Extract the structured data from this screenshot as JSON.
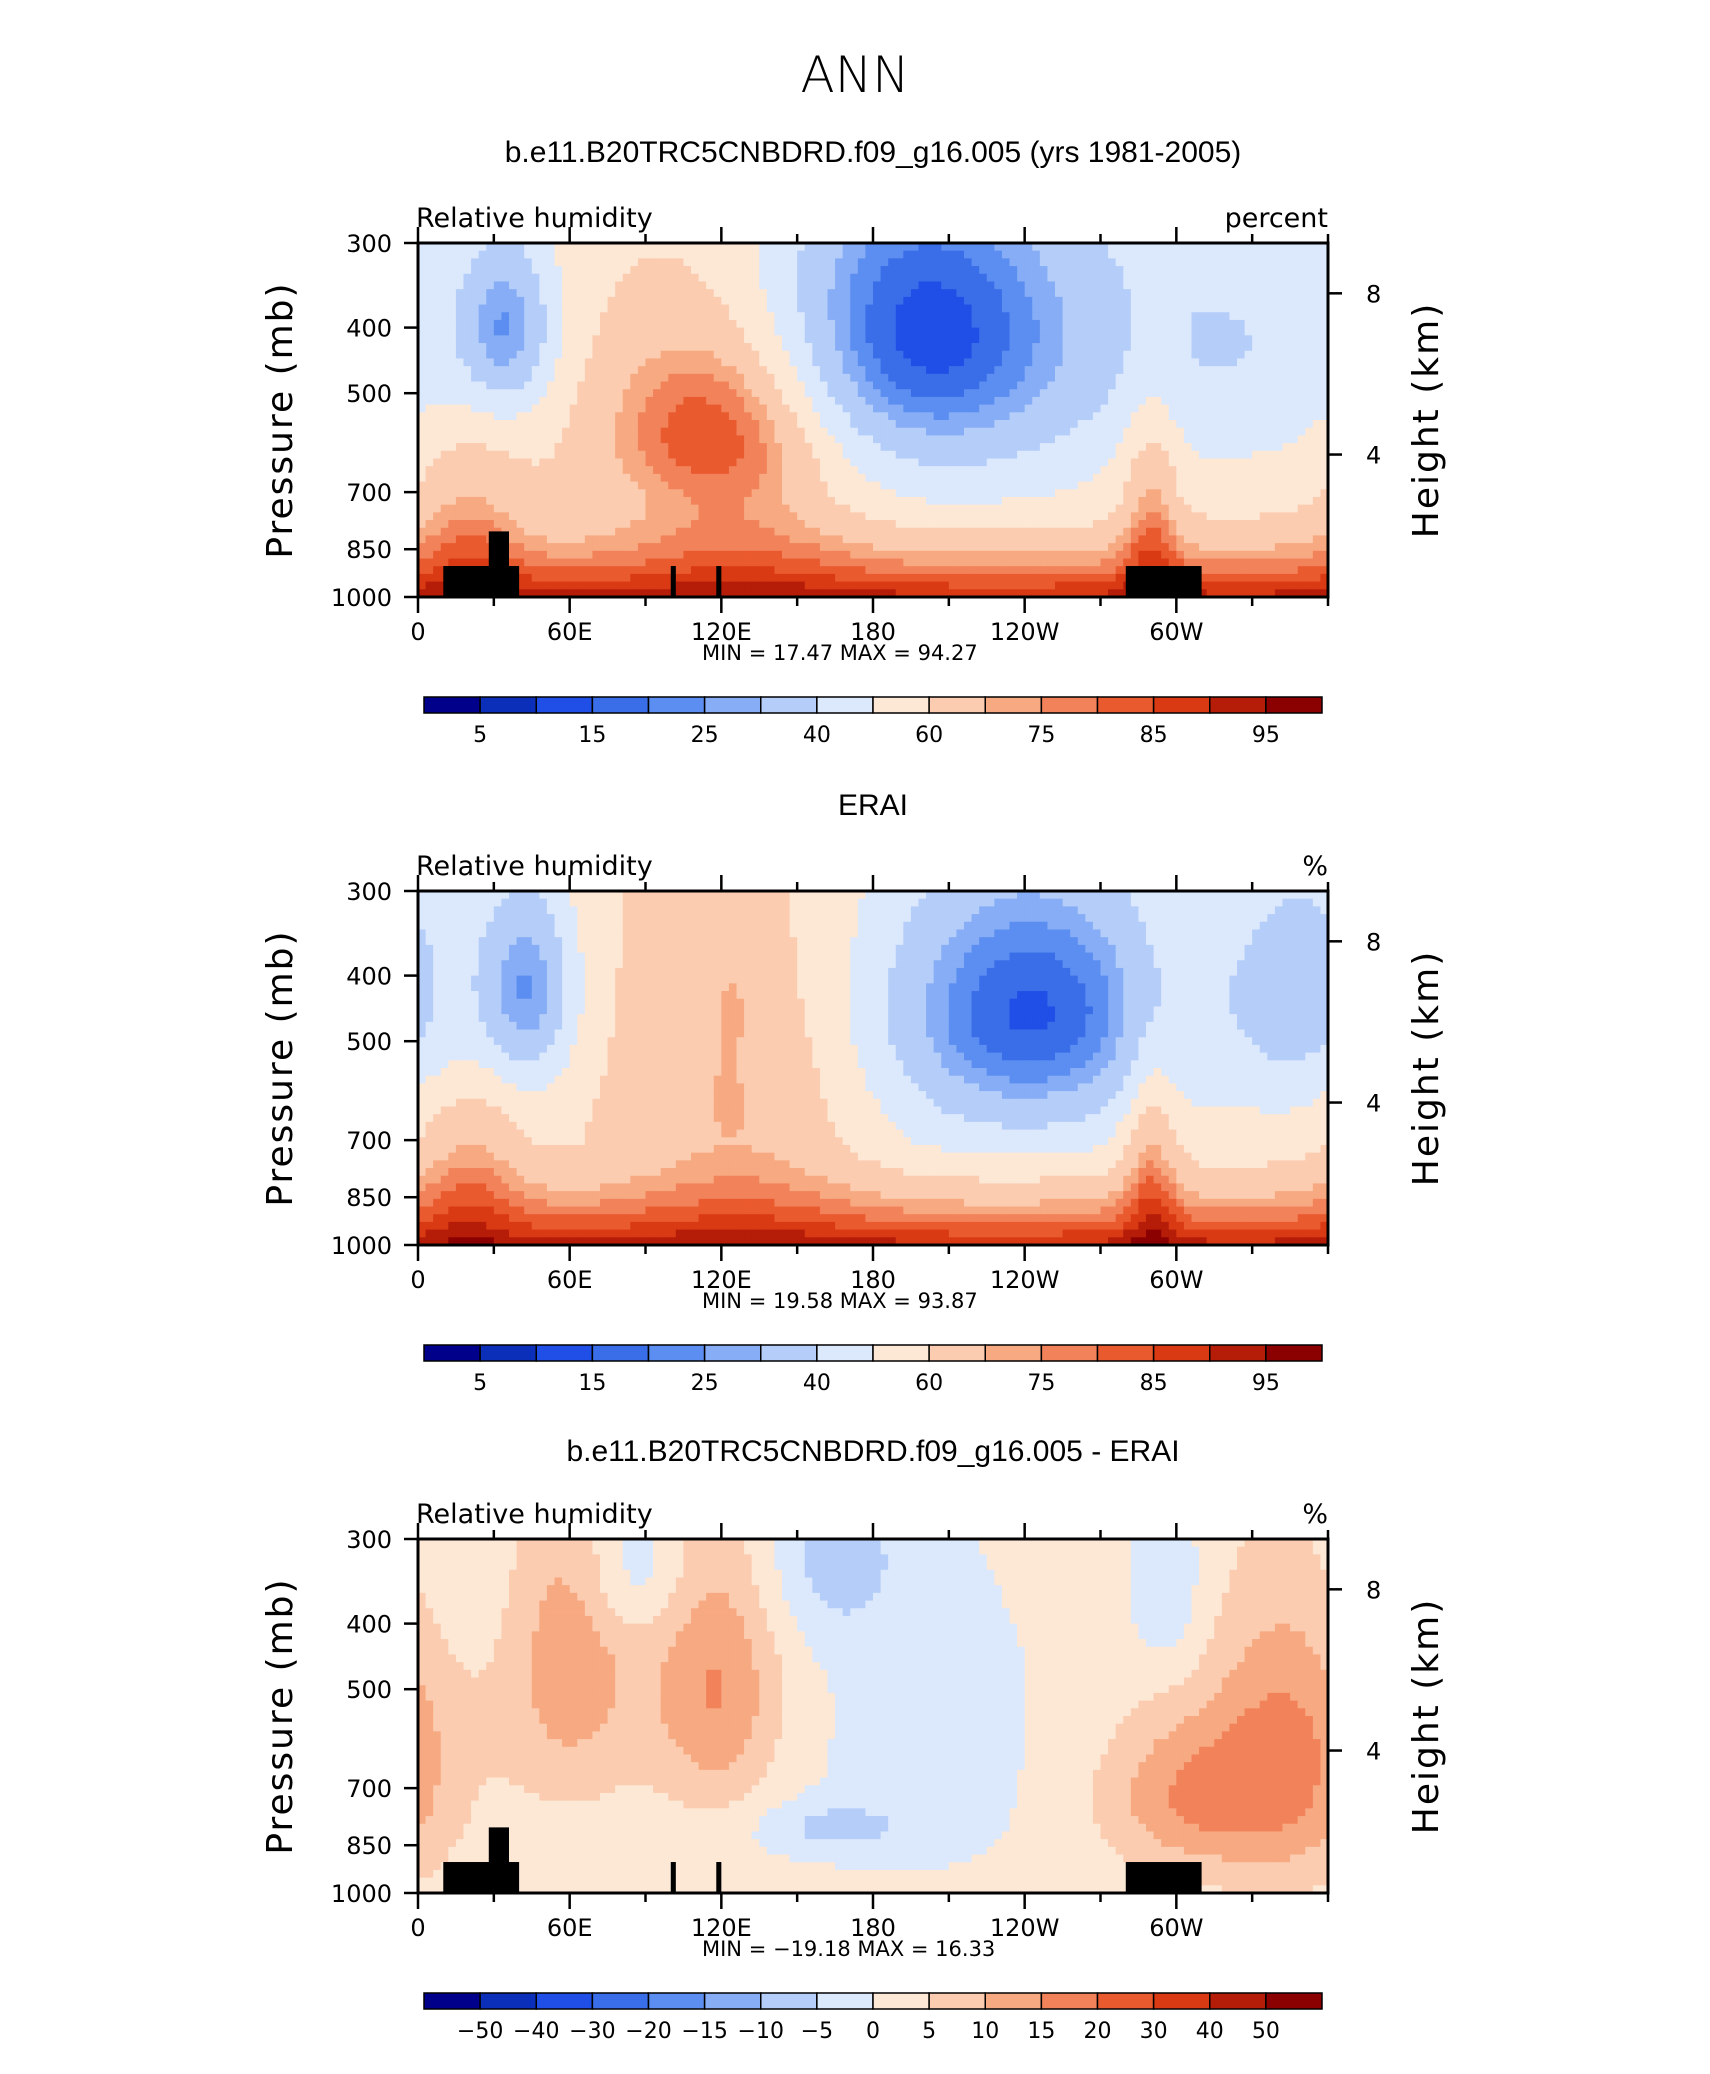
{
  "figure_title": "ANN",
  "colormap": [
    "#00008b",
    "#0b2fb8",
    "#1f4fe6",
    "#3a6ee8",
    "#5b8ef0",
    "#86adf5",
    "#b4cdf9",
    "#dce8fc",
    "#fde8d6",
    "#fbccb0",
    "#f7a981",
    "#f2825a",
    "#ea5a2f",
    "#d93a14",
    "#b51d08",
    "#8b0000"
  ],
  "axes": {
    "left_label": "Pressure (mb)",
    "right_label": "Height (km)",
    "pressure_ticks": [
      "300",
      "400",
      "500",
      "700",
      "850",
      "1000"
    ],
    "height_ticks": [
      "8",
      "4"
    ],
    "x_ticks": [
      "0",
      "60E",
      "120E",
      "180",
      "120W",
      "60W"
    ]
  },
  "chart_data": [
    {
      "type": "heatmap",
      "title": "b.e11.B20TRC5CNBDRD.f09_g16.005 (yrs 1981-2005)",
      "variable": "Relative humidity",
      "units": "percent",
      "min_label": "MIN =",
      "min_value": "17.47",
      "max_label": "MAX =",
      "max_value": "94.27",
      "colorbar_ticks": [
        "5",
        "15",
        "25",
        "40",
        "60",
        "75",
        "85",
        "95"
      ],
      "x_range": [
        0,
        360
      ],
      "y_range_mb": [
        300,
        1000
      ],
      "topography_mask": true,
      "mode": "field_a",
      "blobs": [
        {
          "lon": 35,
          "p": 400,
          "value": 28,
          "spread": [
            14,
            90
          ]
        },
        {
          "lon": 198,
          "p": 400,
          "value": 18,
          "spread": [
            50,
            160
          ]
        },
        {
          "lon": 115,
          "p": 550,
          "value": 78,
          "spread": [
            30,
            120
          ]
        },
        {
          "lon": 330,
          "p": 420,
          "value": 42,
          "spread": [
            40,
            150
          ]
        }
      ]
    },
    {
      "type": "heatmap",
      "title": "ERAI",
      "variable": "Relative humidity",
      "units": "%",
      "min_label": "MIN =",
      "min_value": "19.58",
      "max_label": "MAX =",
      "max_value": "93.87",
      "colorbar_ticks": [
        "5",
        "15",
        "25",
        "40",
        "60",
        "75",
        "85",
        "95"
      ],
      "x_range": [
        0,
        360
      ],
      "y_range_mb": [
        300,
        1000
      ],
      "topography_mask": false,
      "mode": "field_b",
      "blobs": [
        {
          "lon": 43,
          "p": 420,
          "value": 25,
          "spread": [
            14,
            110
          ]
        },
        {
          "lon": 245,
          "p": 450,
          "value": 20,
          "spread": [
            42,
            150
          ]
        },
        {
          "lon": 350,
          "p": 420,
          "value": 35,
          "spread": [
            22,
            140
          ]
        },
        {
          "lon": 125,
          "p": 400,
          "value": 62,
          "spread": [
            8,
            80
          ]
        }
      ]
    },
    {
      "type": "heatmap",
      "title": "b.e11.B20TRC5CNBDRD.f09_g16.005 - ERAI",
      "variable": "Relative humidity",
      "units": "%",
      "min_label": "MIN =",
      "min_value": "−19.18",
      "max_label": "MAX =",
      "max_value": "16.33",
      "colorbar_ticks": [
        "−50",
        "−40",
        "−30",
        "−20",
        "−15",
        "−10",
        "−5",
        "0",
        "5",
        "10",
        "15",
        "20",
        "30",
        "40",
        "50"
      ],
      "x_range": [
        0,
        360
      ],
      "y_range_mb": [
        300,
        1000
      ],
      "topography_mask": true,
      "mode": "diff",
      "blobs": [
        {
          "lon": 60,
          "p": 450,
          "value": 12,
          "spread": [
            20,
            180
          ]
        },
        {
          "lon": 118,
          "p": 500,
          "value": 14,
          "spread": [
            18,
            160
          ]
        },
        {
          "lon": 85,
          "p": 330,
          "value": -8,
          "spread": [
            14,
            60
          ]
        },
        {
          "lon": 165,
          "p": 320,
          "value": -8,
          "spread": [
            20,
            70
          ]
        },
        {
          "lon": 165,
          "p": 800,
          "value": -7,
          "spread": [
            22,
            50
          ]
        },
        {
          "lon": 305,
          "p": 720,
          "value": 13,
          "spread": [
            25,
            140
          ]
        },
        {
          "lon": 345,
          "p": 620,
          "value": 14,
          "spread": [
            22,
            220
          ]
        },
        {
          "lon": 297,
          "p": 360,
          "value": -6,
          "spread": [
            10,
            80
          ]
        },
        {
          "lon": 20,
          "p": 320,
          "value": -3,
          "spread": [
            20,
            120
          ]
        },
        {
          "lon": 200,
          "p": 600,
          "value": -3,
          "spread": [
            40,
            260
          ]
        }
      ]
    }
  ]
}
